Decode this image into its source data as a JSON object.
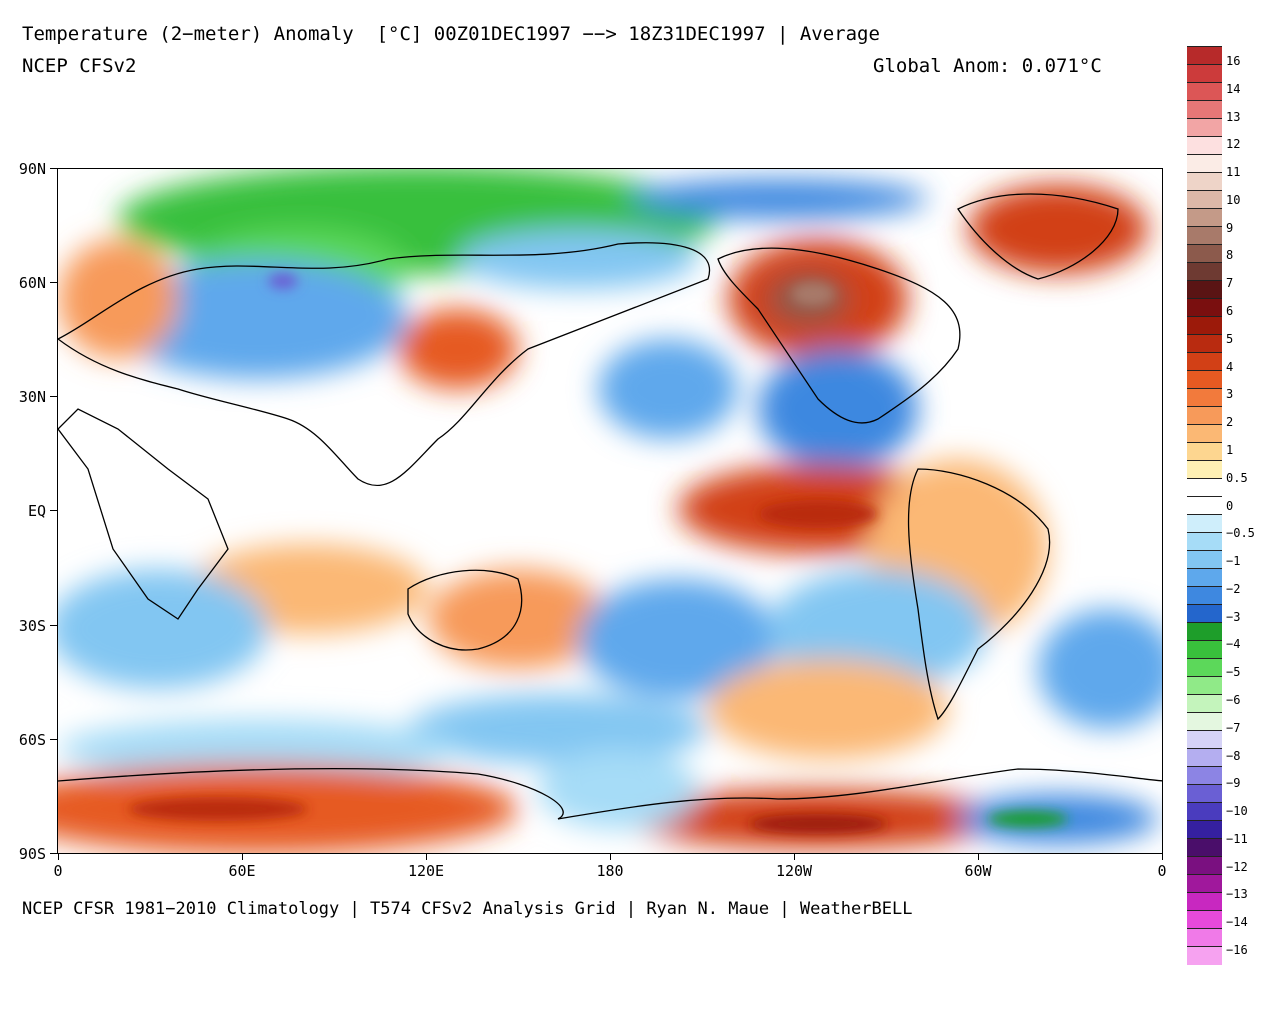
{
  "header": {
    "title": "Temperature (2−meter) Anomaly  [°C] 00Z01DEC1997 −−> 18Z31DEC1997 | Average",
    "model": "NCEP CFSv2",
    "global_anom": "Global Anom: 0.071°C"
  },
  "footer": "NCEP CFSR 1981−2010 Climatology | T574 CFSv2 Analysis Grid | Ryan N. Maue | WeatherBELL",
  "map": {
    "lat_labels": [
      "90N",
      "60N",
      "30N",
      "EQ",
      "30S",
      "60S",
      "90S"
    ],
    "lon_labels": [
      "0",
      "60E",
      "120E",
      "180",
      "120W",
      "60W",
      "0"
    ]
  },
  "colorbar": {
    "labels": [
      "16",
      "14",
      "13",
      "12",
      "11",
      "10",
      "9",
      "8",
      "7",
      "6",
      "5",
      "4",
      "3",
      "2",
      "1",
      "0.5",
      "0",
      "−0.5",
      "−1",
      "−2",
      "−3",
      "−4",
      "−5",
      "−6",
      "−7",
      "−8",
      "−9",
      "−10",
      "−11",
      "−12",
      "−13",
      "−14",
      "−16"
    ],
    "colors": [
      "#b72a2a",
      "#cc3b3b",
      "#dc5656",
      "#e67777",
      "#f2a5a5",
      "#fde0e0",
      "#fbece6",
      "#eed4c8",
      "#dcb8a8",
      "#c49a88",
      "#a87a6a",
      "#8c5a4c",
      "#6e3a32",
      "#5a1414",
      "#7a0f0f",
      "#9c1a0a",
      "#b92b10",
      "#d24016",
      "#e65a22",
      "#f27a3c",
      "#f79a5a",
      "#fbb874",
      "#fdd690",
      "#fef0b4",
      "#ffffff",
      "#ffffff",
      "#cfeefb",
      "#a6dcf7",
      "#82c6f2",
      "#5ea8ec",
      "#3e88e0",
      "#2466cc",
      "#1e9e2a",
      "#39c03c",
      "#5cd85a",
      "#90ea88",
      "#c4f4bc",
      "#e4f7e0",
      "#d6d3f7",
      "#b4aef0",
      "#8c84e4",
      "#6a5fd4",
      "#4a3cbe",
      "#3520a0",
      "#4a0e6a",
      "#7a1080",
      "#a0189c",
      "#c828c0",
      "#e64ada",
      "#f07ae8",
      "#f6a2f0"
    ],
    "boundaries": [
      0,
      2,
      4,
      5,
      6,
      7,
      8,
      9,
      10,
      11,
      12,
      13,
      14,
      16
    ]
  }
}
